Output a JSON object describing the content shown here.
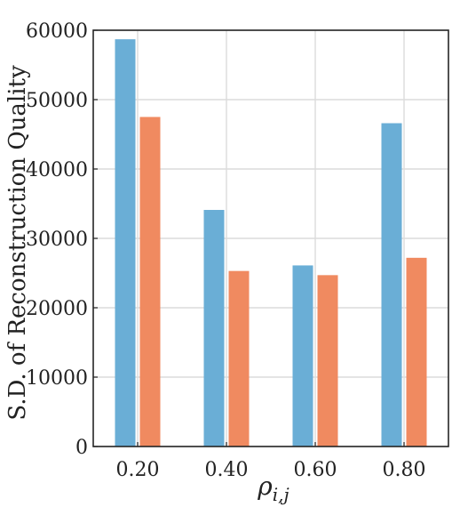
{
  "chart_data": {
    "type": "bar",
    "title": "",
    "xlabel": "ρi,j",
    "ylabel": "S.D. of Reconstruction Quality",
    "categories": [
      "0.20",
      "0.40",
      "0.60",
      "0.80"
    ],
    "yticks": [
      "0",
      "10000",
      "20000",
      "30000",
      "40000",
      "50000",
      "60000"
    ],
    "ylim": [
      0,
      60000
    ],
    "grid": true,
    "series": [
      {
        "values": [
          58700,
          34100,
          26100,
          46600
        ],
        "color": "#6aaed6"
      },
      {
        "values": [
          47500,
          25300,
          24700,
          27200
        ],
        "color": "#f08a60"
      }
    ]
  }
}
